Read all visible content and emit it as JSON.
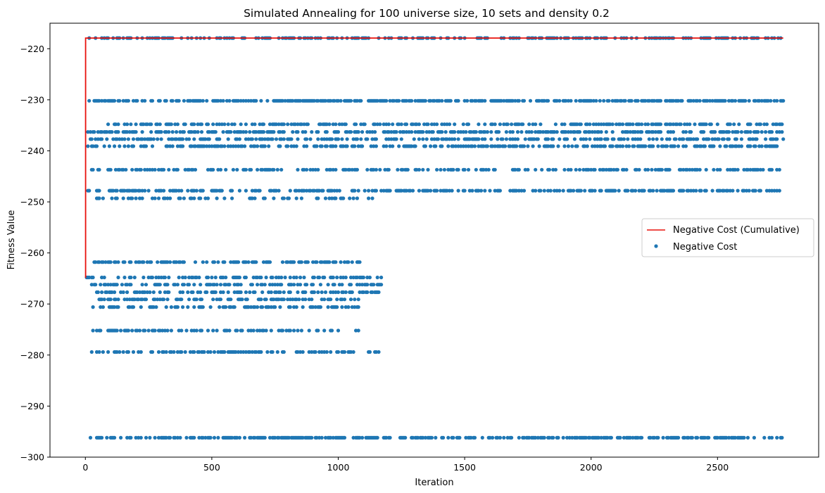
{
  "chart_data": {
    "type": "scatter",
    "title": "Simulated Annealing for 100 universe size, 10 sets and density 0.2",
    "xlabel": "Iteration",
    "ylabel": "Fitness Value",
    "xlim": [
      -140,
      2900
    ],
    "ylim": [
      -300,
      -215
    ],
    "xticks": [
      0,
      500,
      1000,
      1500,
      2000,
      2500
    ],
    "yticks": [
      -300,
      -290,
      -280,
      -270,
      -260,
      -250,
      -240,
      -230,
      -220
    ],
    "grid": false,
    "legend_position": "center-right",
    "series": [
      {
        "name": "Negative Cost (Cumulative)",
        "type": "line",
        "color": "#e8120c",
        "x": [
          0,
          1,
          1,
          2760
        ],
        "y": [
          -264.8,
          -264.8,
          -217.9,
          -217.9
        ]
      },
      {
        "name": "Negative Cost",
        "type": "scatter",
        "color": "#1f77b4",
        "levels": [
          {
            "y": -217.9,
            "x_range": [
              10,
              2760
            ],
            "density": 0.42
          },
          {
            "y": -230.2,
            "x_range": [
              5,
              2760
            ],
            "density": 0.6
          },
          {
            "y": -234.8,
            "x_range": [
              90,
              2760
            ],
            "density": 0.4
          },
          {
            "y": -236.3,
            "x_range": [
              5,
              2760
            ],
            "density": 0.5
          },
          {
            "y": -237.7,
            "x_range": [
              5,
              2760
            ],
            "density": 0.45
          },
          {
            "y": -239.1,
            "x_range": [
              5,
              2760
            ],
            "density": 0.45
          },
          {
            "y": -243.7,
            "x_range": [
              0,
              2750
            ],
            "density": 0.38
          },
          {
            "y": -247.8,
            "x_range": [
              10,
              2750
            ],
            "density": 0.45
          },
          {
            "y": -249.3,
            "x_range": [
              30,
              1170
            ],
            "density": 0.3
          },
          {
            "y": -261.8,
            "x_range": [
              30,
              1090
            ],
            "density": 0.45
          },
          {
            "y": -264.8,
            "x_range": [
              0,
              1170
            ],
            "density": 0.4
          },
          {
            "y": -266.2,
            "x_range": [
              20,
              1170
            ],
            "density": 0.4
          },
          {
            "y": -267.7,
            "x_range": [
              40,
              1170
            ],
            "density": 0.35
          },
          {
            "y": -269.1,
            "x_range": [
              30,
              1090
            ],
            "density": 0.4
          },
          {
            "y": -270.6,
            "x_range": [
              30,
              1090
            ],
            "density": 0.4
          },
          {
            "y": -275.2,
            "x_range": [
              20,
              1090
            ],
            "density": 0.3
          },
          {
            "y": -279.4,
            "x_range": [
              20,
              1170
            ],
            "density": 0.4
          },
          {
            "y": -296.2,
            "x_range": [
              15,
              2760
            ],
            "density": 0.5
          }
        ]
      }
    ]
  }
}
